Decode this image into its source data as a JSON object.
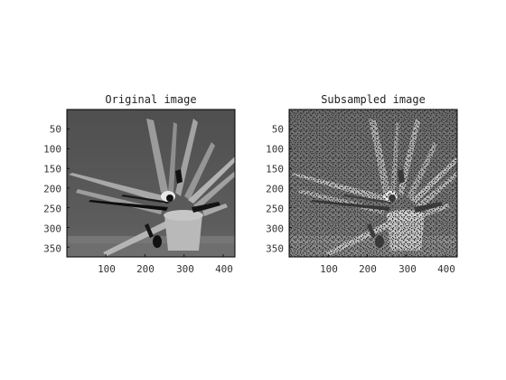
{
  "panels": [
    {
      "title": "Original image",
      "content": "depth-map",
      "x_ticks": [
        "100",
        "200",
        "300",
        "400"
      ],
      "y_ticks": [
        "50",
        "100",
        "150",
        "200",
        "250",
        "300",
        "350"
      ]
    },
    {
      "title": "Subsampled image",
      "content": "sparse-depth-map",
      "x_ticks": [
        "100",
        "200",
        "300",
        "400"
      ],
      "y_ticks": [
        "50",
        "100",
        "150",
        "200",
        "250",
        "300",
        "350"
      ]
    }
  ],
  "colors": {
    "background": "#ffffff",
    "axis": "#000000",
    "wall": "#5a5a5a",
    "floor": "#7a7a7a",
    "leaf": "#a8a8a8",
    "pot": "#b9b9b9",
    "shadow": "#0d0d0d"
  }
}
